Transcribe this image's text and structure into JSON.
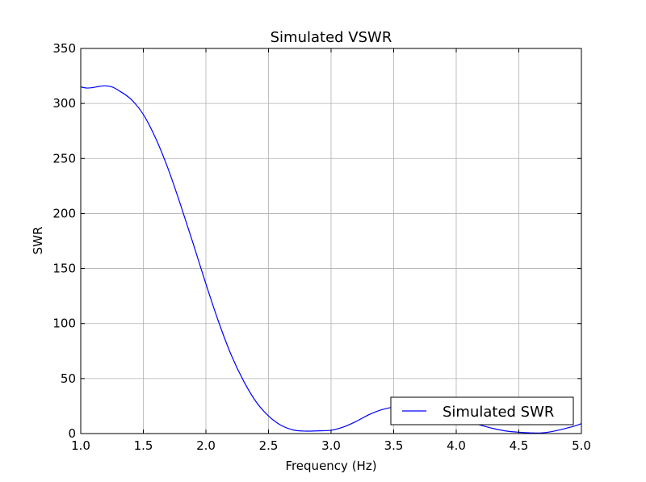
{
  "chart_data": {
    "type": "line",
    "title": "Simulated VSWR",
    "xlabel": "Frequency (Hz)",
    "ylabel": "SWR",
    "xlim": [
      1.0,
      5.0
    ],
    "ylim": [
      0,
      350
    ],
    "xticks": [
      "1.0",
      "1.5",
      "2.0",
      "2.5",
      "3.0",
      "3.5",
      "4.0",
      "4.5",
      "5.0"
    ],
    "yticks": [
      "0",
      "50",
      "100",
      "150",
      "200",
      "250",
      "300",
      "350"
    ],
    "grid": true,
    "legend": {
      "position": "bottom-right",
      "entries": [
        "Simulated SWR"
      ]
    },
    "series": [
      {
        "name": "Simulated SWR",
        "color": "#0000ff",
        "x": [
          1.0,
          1.05,
          1.1,
          1.15,
          1.2,
          1.25,
          1.3,
          1.4,
          1.5,
          1.6,
          1.7,
          1.8,
          1.9,
          2.0,
          2.1,
          2.2,
          2.3,
          2.4,
          2.5,
          2.6,
          2.7,
          2.8,
          2.9,
          3.0,
          3.1,
          3.2,
          3.3,
          3.4,
          3.5,
          3.6,
          3.7,
          3.8,
          3.9,
          4.0,
          4.1,
          4.2,
          4.3,
          4.4,
          4.5,
          4.6,
          4.67,
          4.75,
          4.85,
          4.95,
          5.0
        ],
        "y": [
          315,
          314,
          314.5,
          315.5,
          316,
          315,
          312,
          304,
          290,
          268,
          240,
          207,
          172,
          136,
          102,
          72,
          48,
          29,
          16,
          7.5,
          3.2,
          2.2,
          2.5,
          3,
          6,
          11,
          17,
          21.5,
          24,
          24,
          23,
          21,
          18,
          14.5,
          11,
          7.5,
          4.5,
          2.3,
          1.2,
          0.6,
          0.5,
          1.5,
          4,
          7,
          9
        ]
      }
    ]
  }
}
